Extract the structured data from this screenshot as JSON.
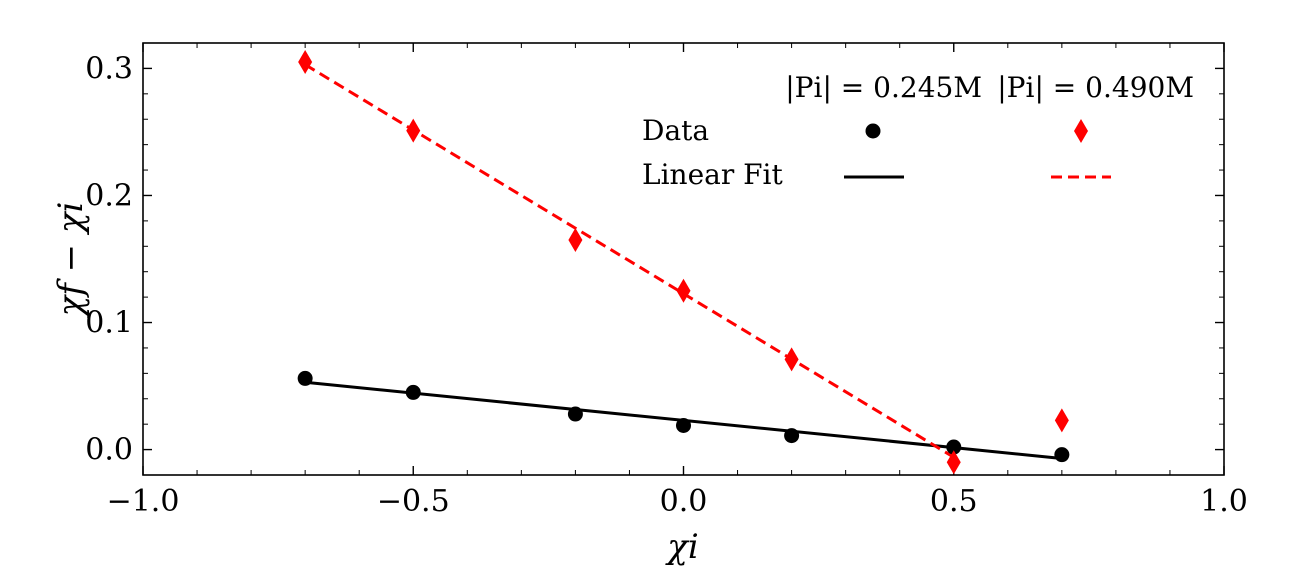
{
  "chart_data": {
    "type": "scatter",
    "title": "",
    "xlabel": "χi",
    "ylabel": "χf − χi",
    "xlim": [
      -1.0,
      1.0
    ],
    "ylim": [
      -0.02,
      0.32
    ],
    "x_ticks": [
      -1.0,
      -0.5,
      0.0,
      0.5,
      1.0
    ],
    "x_tick_labels": [
      "−1.0",
      "−0.5",
      "0.0",
      "0.5",
      "1.0"
    ],
    "y_ticks": [
      0.0,
      0.1,
      0.2,
      0.3
    ],
    "y_tick_labels": [
      "0.0",
      "0.1",
      "0.2",
      "0.3"
    ],
    "grid": false,
    "legend": {
      "placement": "top-right",
      "col_headers": [
        "|Pi| = 0.245M",
        "|Pi| = 0.490M"
      ],
      "row_labels": [
        "Data",
        "Linear Fit"
      ]
    },
    "series": [
      {
        "name": "|Pi| = 0.245M",
        "color": "#000000",
        "marker": "circle",
        "x": [
          -0.7,
          -0.5,
          -0.2,
          0.0,
          0.2,
          0.5,
          0.7
        ],
        "y": [
          0.056,
          0.045,
          0.028,
          0.019,
          0.011,
          0.002,
          -0.004
        ],
        "fit": {
          "x": [
            -0.7,
            0.7
          ],
          "y": [
            0.053,
            -0.007
          ],
          "style": "solid"
        }
      },
      {
        "name": "|Pi| = 0.490M",
        "color": "#ff0000",
        "marker": "diamond",
        "x": [
          -0.7,
          -0.5,
          -0.2,
          0.0,
          0.2,
          0.5,
          0.7
        ],
        "y": [
          0.305,
          0.251,
          0.165,
          0.125,
          0.071,
          -0.01,
          0.023
        ],
        "fit": {
          "x": [
            -0.7,
            0.5
          ],
          "y": [
            0.303,
            -0.006
          ],
          "style": "dashed"
        }
      }
    ]
  }
}
